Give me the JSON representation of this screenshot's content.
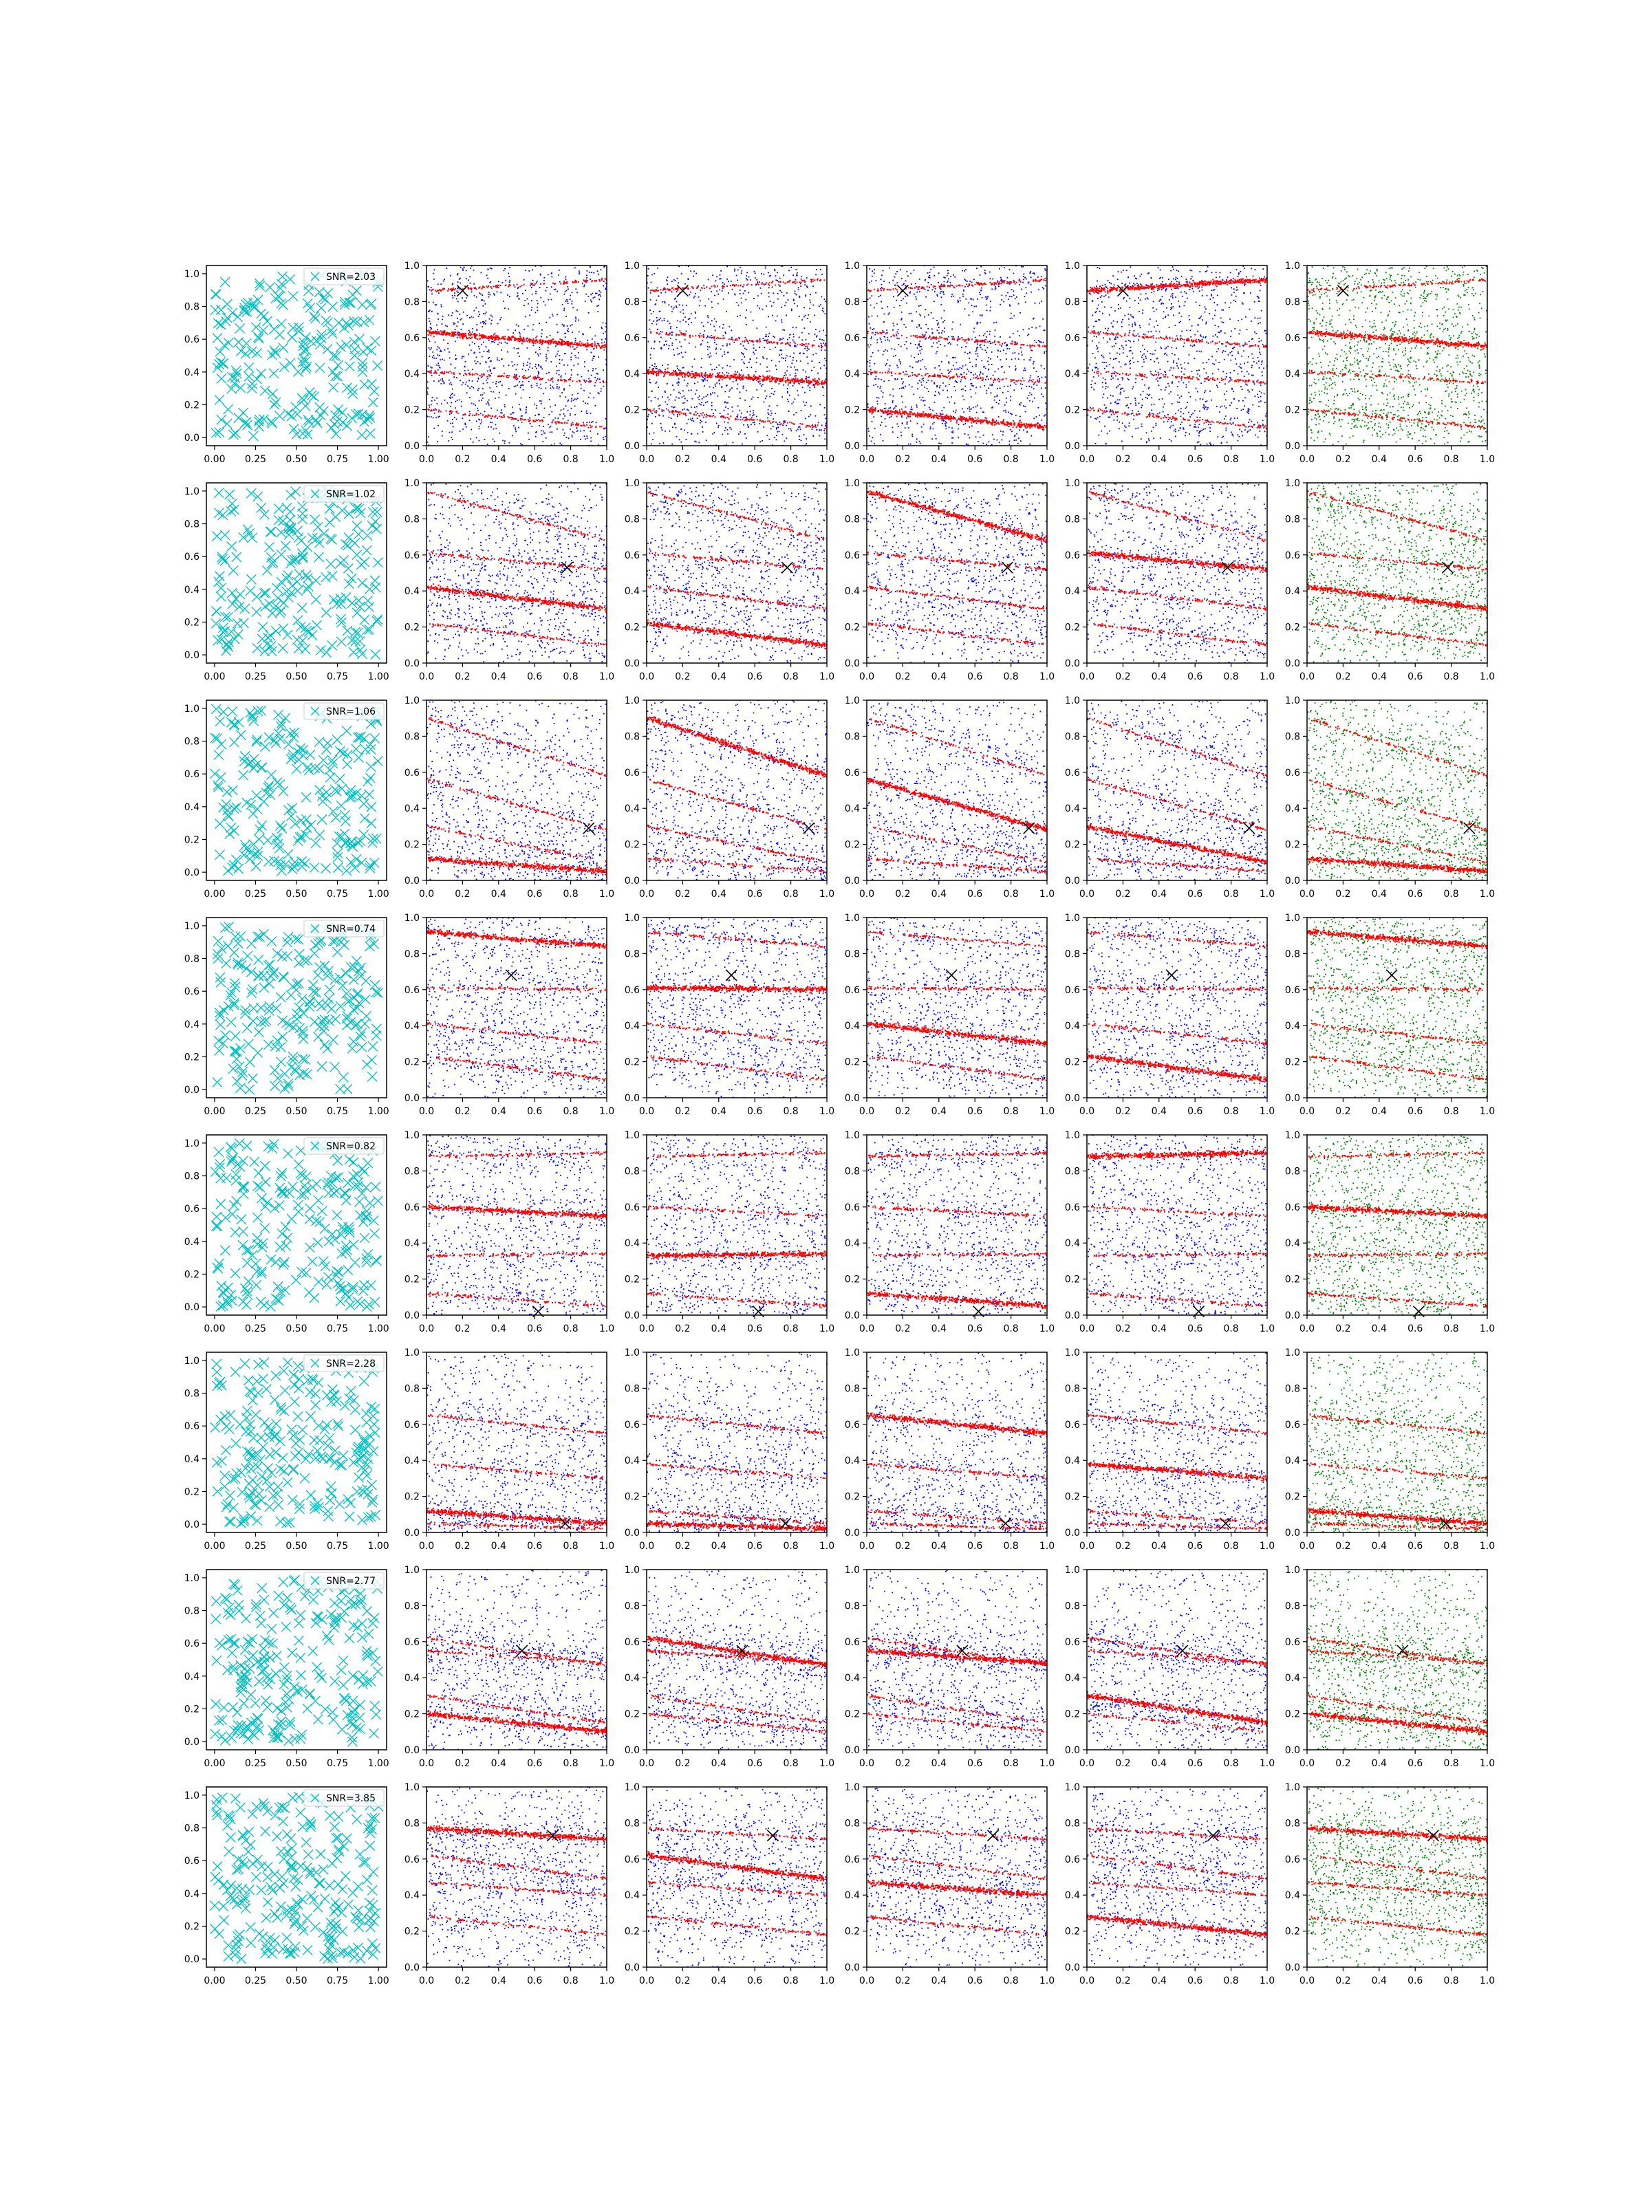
{
  "figure": {
    "rows": 8,
    "cols": 6
  },
  "chart_data": {
    "type": "scatter",
    "grid": false,
    "colors": {
      "first_column": "#00bfbf",
      "primary_points": "#ff0000",
      "secondary_points": "#0000ff",
      "combined_points": "#008000",
      "source_marker": "#000000"
    },
    "first_column_axes": {
      "xlim": [
        -0.05,
        1.05
      ],
      "ylim": [
        -0.05,
        1.05
      ],
      "xticks": [
        "0.00",
        "0.25",
        "0.50",
        "0.75",
        "1.00"
      ],
      "yticks": [
        "0.0",
        "0.2",
        "0.4",
        "0.6",
        "0.8",
        "1.0"
      ]
    },
    "other_axes": {
      "xlim": [
        0,
        1
      ],
      "ylim": [
        0,
        1
      ],
      "xticks": [
        "0.0",
        "0.2",
        "0.4",
        "0.6",
        "0.8",
        "1.0"
      ],
      "yticks": [
        "0.0",
        "0.2",
        "0.4",
        "0.6",
        "0.8",
        "1.0"
      ]
    },
    "legend_placement": "upper-right",
    "rows": [
      {
        "snr_label": "SNR=2.03",
        "source_x": 0.2,
        "source_y": 0.86,
        "bands": [
          [
            0.86,
            0.92
          ],
          [
            0.63,
            0.55
          ],
          [
            0.41,
            0.35
          ],
          [
            0.2,
            0.1
          ]
        ]
      },
      {
        "snr_label": "SNR=1.02",
        "source_x": 0.78,
        "source_y": 0.53,
        "bands": [
          [
            0.95,
            0.68
          ],
          [
            0.61,
            0.52
          ],
          [
            0.42,
            0.3
          ],
          [
            0.22,
            0.1
          ]
        ]
      },
      {
        "snr_label": "SNR=1.06",
        "source_x": 0.9,
        "source_y": 0.29,
        "bands": [
          [
            0.9,
            0.58
          ],
          [
            0.56,
            0.28
          ],
          [
            0.3,
            0.1
          ],
          [
            0.12,
            0.05
          ]
        ]
      },
      {
        "snr_label": "SNR=0.74",
        "source_x": 0.47,
        "source_y": 0.68,
        "bands": [
          [
            0.92,
            0.84
          ],
          [
            0.61,
            0.6
          ],
          [
            0.41,
            0.3
          ],
          [
            0.23,
            0.1
          ]
        ]
      },
      {
        "snr_label": "SNR=0.82",
        "source_x": 0.62,
        "source_y": 0.02,
        "bands": [
          [
            0.88,
            0.9
          ],
          [
            0.6,
            0.55
          ],
          [
            0.33,
            0.34
          ],
          [
            0.12,
            0.05
          ]
        ]
      },
      {
        "snr_label": "SNR=2.28",
        "source_x": 0.77,
        "source_y": 0.05,
        "bands": [
          [
            0.65,
            0.55
          ],
          [
            0.38,
            0.3
          ],
          [
            0.12,
            0.05
          ],
          [
            0.05,
            0.02
          ]
        ]
      },
      {
        "snr_label": "SNR=2.77",
        "source_x": 0.53,
        "source_y": 0.55,
        "bands": [
          [
            0.62,
            0.47
          ],
          [
            0.55,
            0.48
          ],
          [
            0.3,
            0.15
          ],
          [
            0.2,
            0.1
          ]
        ]
      },
      {
        "snr_label": "SNR=3.85",
        "source_x": 0.7,
        "source_y": 0.73,
        "bands": [
          [
            0.77,
            0.71
          ],
          [
            0.62,
            0.49
          ],
          [
            0.47,
            0.4
          ],
          [
            0.28,
            0.18
          ]
        ]
      }
    ]
  }
}
